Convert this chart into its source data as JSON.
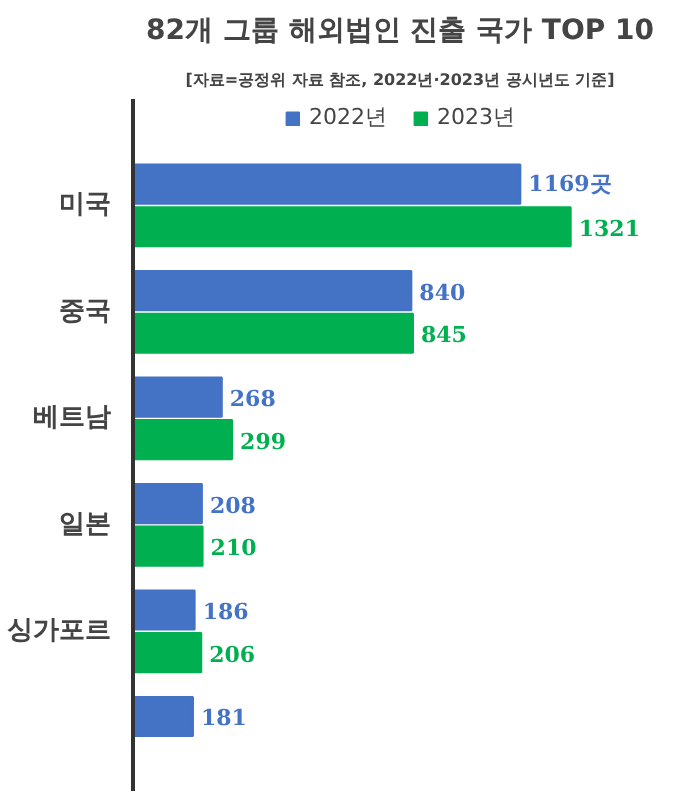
{
  "chart_data": {
    "type": "bar",
    "orientation": "horizontal",
    "title": "82개 그룹 해외법인 진출 국가 TOP 10",
    "subtitle": "[자료=공정위 자료 참조, 2022년·2023년 공시년도 기준]",
    "categories": [
      "미국",
      "중국",
      "베트남",
      "일본",
      "싱가포르",
      null
    ],
    "series": [
      {
        "name": "2022년",
        "color": "#4472c4",
        "values": [
          1169,
          840,
          268,
          208,
          186,
          181
        ],
        "value_labels": [
          "1169곳",
          "840",
          "268",
          "208",
          "186",
          "181"
        ]
      },
      {
        "name": "2023년",
        "color": "#00b050",
        "values": [
          1321,
          845,
          299,
          210,
          206,
          null
        ],
        "value_labels": [
          "1321",
          "845",
          "299",
          "210",
          "206",
          null
        ]
      }
    ],
    "legend": "top"
  }
}
